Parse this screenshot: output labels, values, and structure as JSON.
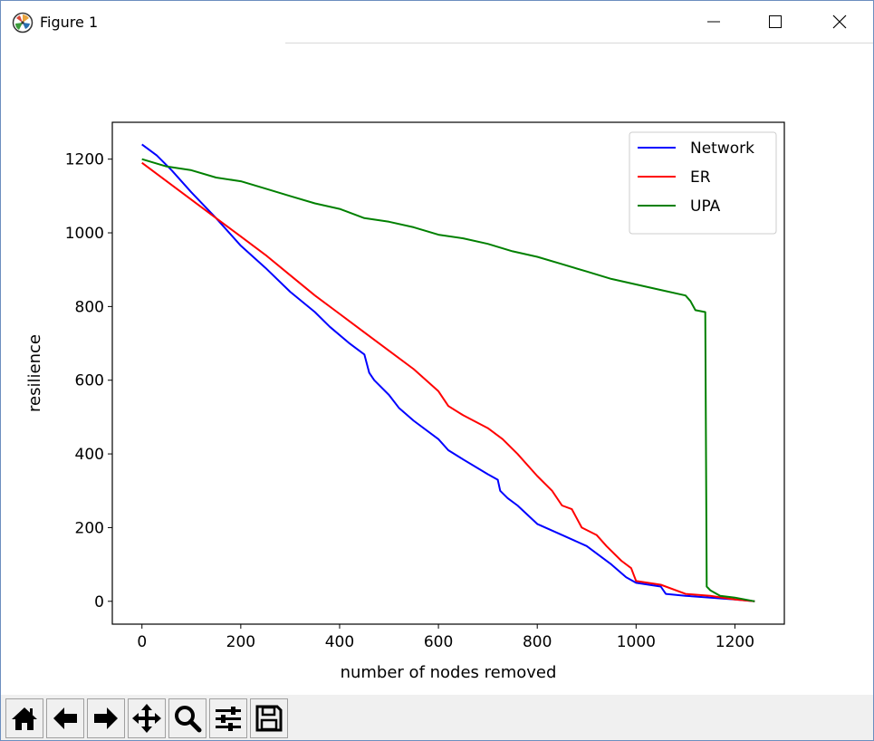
{
  "window": {
    "title": "Figure 1",
    "icons": {
      "app": "matplotlib-figure-icon",
      "minimize": "minimize-icon",
      "maximize": "maximize-icon",
      "close": "close-icon"
    }
  },
  "toolbar": {
    "tools": [
      {
        "name": "home",
        "icon": "home-icon"
      },
      {
        "name": "back",
        "icon": "arrow-left-icon"
      },
      {
        "name": "forward",
        "icon": "arrow-right-icon"
      },
      {
        "name": "pan",
        "icon": "move-icon"
      },
      {
        "name": "zoom",
        "icon": "magnifier-icon"
      },
      {
        "name": "configure-subplots",
        "icon": "sliders-icon"
      },
      {
        "name": "save",
        "icon": "floppy-disk-icon"
      }
    ]
  },
  "chart_data": {
    "type": "line",
    "title": "",
    "xlabel": "number of nodes removed",
    "ylabel": "resilience",
    "xlim": [
      -60,
      1300
    ],
    "ylim": [
      -62,
      1300
    ],
    "xticks": [
      0,
      200,
      400,
      600,
      800,
      1000,
      1200
    ],
    "yticks": [
      0,
      200,
      400,
      600,
      800,
      1000,
      1200
    ],
    "grid": false,
    "legend": "top-right",
    "series": [
      {
        "name": "Network",
        "color": "#0000ff",
        "points": [
          [
            0,
            1240
          ],
          [
            30,
            1210
          ],
          [
            60,
            1170
          ],
          [
            100,
            1110
          ],
          [
            150,
            1040
          ],
          [
            200,
            965
          ],
          [
            250,
            905
          ],
          [
            300,
            840
          ],
          [
            350,
            785
          ],
          [
            380,
            745
          ],
          [
            420,
            700
          ],
          [
            450,
            670
          ],
          [
            460,
            620
          ],
          [
            470,
            600
          ],
          [
            500,
            560
          ],
          [
            520,
            525
          ],
          [
            550,
            490
          ],
          [
            600,
            440
          ],
          [
            620,
            410
          ],
          [
            650,
            385
          ],
          [
            700,
            345
          ],
          [
            720,
            330
          ],
          [
            725,
            300
          ],
          [
            740,
            280
          ],
          [
            760,
            260
          ],
          [
            800,
            210
          ],
          [
            850,
            180
          ],
          [
            900,
            150
          ],
          [
            920,
            130
          ],
          [
            950,
            100
          ],
          [
            980,
            65
          ],
          [
            1000,
            50
          ],
          [
            1050,
            40
          ],
          [
            1060,
            20
          ],
          [
            1100,
            15
          ],
          [
            1150,
            10
          ],
          [
            1200,
            5
          ],
          [
            1240,
            0
          ]
        ]
      },
      {
        "name": "ER",
        "color": "#ff0000",
        "points": [
          [
            0,
            1190
          ],
          [
            50,
            1140
          ],
          [
            100,
            1090
          ],
          [
            150,
            1040
          ],
          [
            200,
            990
          ],
          [
            250,
            940
          ],
          [
            300,
            885
          ],
          [
            350,
            830
          ],
          [
            400,
            780
          ],
          [
            450,
            730
          ],
          [
            500,
            680
          ],
          [
            550,
            630
          ],
          [
            600,
            570
          ],
          [
            620,
            530
          ],
          [
            650,
            505
          ],
          [
            700,
            470
          ],
          [
            730,
            440
          ],
          [
            760,
            400
          ],
          [
            800,
            340
          ],
          [
            830,
            300
          ],
          [
            850,
            260
          ],
          [
            870,
            250
          ],
          [
            890,
            200
          ],
          [
            920,
            180
          ],
          [
            940,
            150
          ],
          [
            970,
            110
          ],
          [
            990,
            90
          ],
          [
            1000,
            55
          ],
          [
            1050,
            45
          ],
          [
            1100,
            20
          ],
          [
            1150,
            15
          ],
          [
            1200,
            5
          ],
          [
            1240,
            0
          ]
        ]
      },
      {
        "name": "UPA",
        "color": "#008000",
        "points": [
          [
            0,
            1200
          ],
          [
            50,
            1180
          ],
          [
            100,
            1170
          ],
          [
            150,
            1150
          ],
          [
            200,
            1140
          ],
          [
            250,
            1120
          ],
          [
            300,
            1100
          ],
          [
            350,
            1080
          ],
          [
            400,
            1065
          ],
          [
            450,
            1040
          ],
          [
            500,
            1030
          ],
          [
            550,
            1015
          ],
          [
            600,
            995
          ],
          [
            650,
            985
          ],
          [
            700,
            970
          ],
          [
            750,
            950
          ],
          [
            800,
            935
          ],
          [
            850,
            915
          ],
          [
            900,
            895
          ],
          [
            950,
            875
          ],
          [
            1000,
            860
          ],
          [
            1050,
            845
          ],
          [
            1100,
            830
          ],
          [
            1110,
            815
          ],
          [
            1120,
            790
          ],
          [
            1140,
            785
          ],
          [
            1143,
            40
          ],
          [
            1150,
            30
          ],
          [
            1170,
            15
          ],
          [
            1200,
            10
          ],
          [
            1240,
            0
          ]
        ]
      }
    ]
  }
}
